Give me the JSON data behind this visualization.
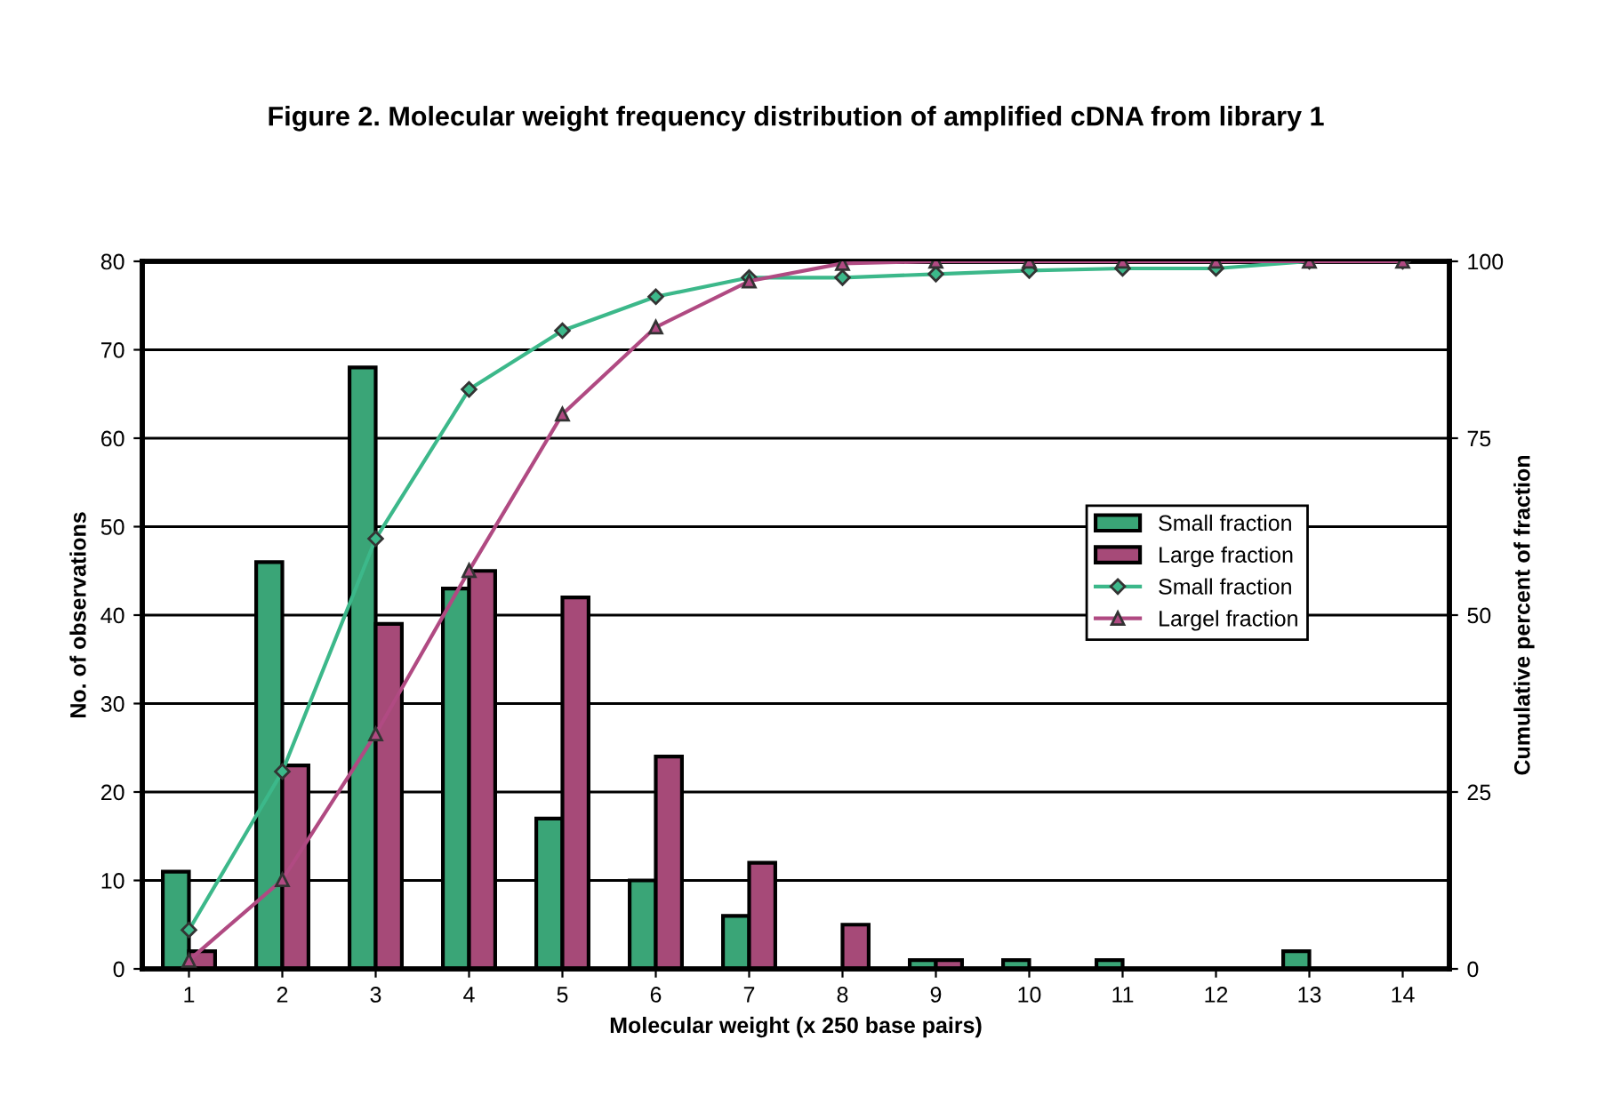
{
  "chart_data": {
    "type": "bar",
    "title": "Figure 2. Molecular weight frequency distribution of amplified cDNA from library 1",
    "xlabel": "Molecular weight (x 250 base pairs)",
    "ylabel": "No. of observations",
    "y2label": "Cumulative percent of fraction",
    "categories": [
      "1",
      "2",
      "3",
      "4",
      "5",
      "6",
      "7",
      "8",
      "9",
      "10",
      "11",
      "12",
      "13",
      "14"
    ],
    "series": [
      {
        "name": "Small fraction",
        "color": "#3aa577",
        "values": [
          11,
          46,
          68,
          43,
          17,
          10,
          6,
          0,
          1,
          1,
          1,
          0,
          2,
          0
        ]
      },
      {
        "name": "Large fraction",
        "color": "#a64a78",
        "values": [
          2,
          23,
          39,
          45,
          42,
          24,
          12,
          5,
          1,
          0,
          0,
          0,
          0,
          0
        ]
      },
      {
        "name": "Small fraction",
        "type": "line",
        "axis": "y2",
        "marker": "diamond",
        "color": "#3cb88a",
        "values": [
          5.5,
          27.9,
          60.8,
          81.9,
          90.2,
          95,
          97.7,
          97.7,
          98.2,
          98.7,
          99,
          99,
          100,
          100
        ]
      },
      {
        "name": "Largel fraction",
        "type": "line",
        "axis": "y2",
        "marker": "triangle",
        "color": "#b04a82",
        "values": [
          1.2,
          12.6,
          33.2,
          56.3,
          78.4,
          90.7,
          97.2,
          99.7,
          100,
          100,
          100,
          100,
          100,
          100
        ]
      }
    ],
    "ylim": [
      0,
      80
    ],
    "yticks": [
      0,
      10,
      20,
      30,
      40,
      50,
      60,
      70,
      80
    ],
    "y2lim": [
      0,
      100
    ],
    "y2ticks": [
      0,
      25,
      50,
      75,
      100
    ],
    "grid": "y",
    "legend": "center right"
  }
}
